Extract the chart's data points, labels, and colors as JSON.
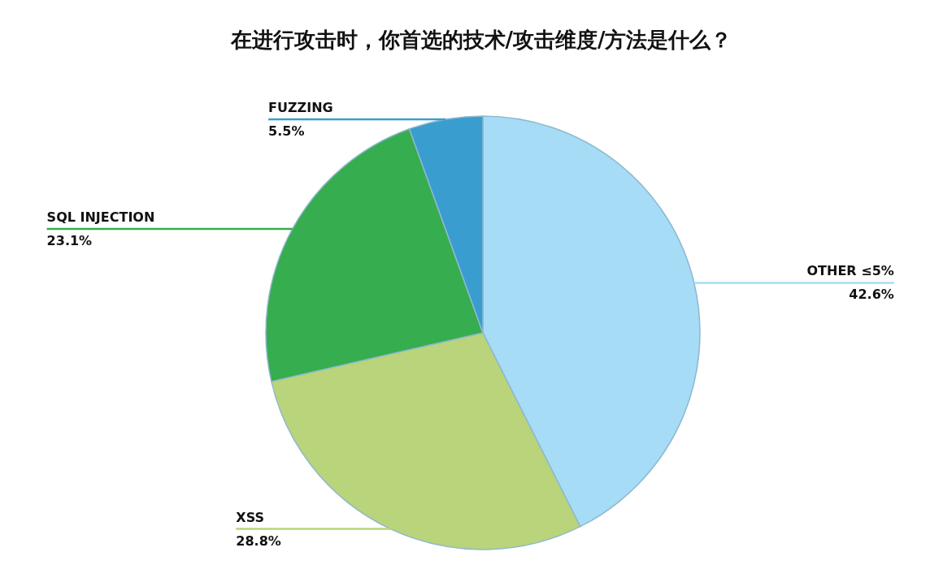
{
  "chart_data": {
    "type": "pie",
    "title": "在进行攻击时，你首选的技术/攻击维度/方法是什么？",
    "categories": [
      "OTHER ≤5%",
      "XSS",
      "SQL INJECTION",
      "FUZZING"
    ],
    "values": [
      42.6,
      28.8,
      23.1,
      5.5
    ],
    "value_labels": [
      "42.6%",
      "28.8%",
      "23.1%",
      "5.5%"
    ],
    "colors": [
      "#a6dcf5",
      "#b9d47a",
      "#36ad4e",
      "#3a9dd0"
    ]
  }
}
